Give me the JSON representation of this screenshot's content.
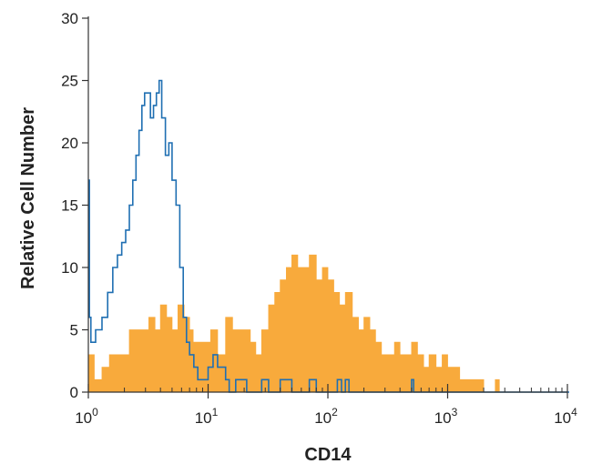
{
  "chart_data": {
    "type": "area",
    "title": "",
    "xlabel": "CD14",
    "ylabel": "Relative Cell Number",
    "x_scale": "log",
    "xlim": [
      1,
      10000
    ],
    "ylim": [
      0,
      30
    ],
    "grid": false,
    "legend": "none",
    "x_tick_labels": [
      {
        "value": 1,
        "base": "10",
        "exp": "0"
      },
      {
        "value": 10,
        "base": "10",
        "exp": "1"
      },
      {
        "value": 100,
        "base": "10",
        "exp": "2"
      },
      {
        "value": 1000,
        "base": "10",
        "exp": "3"
      },
      {
        "value": 10000,
        "base": "10",
        "exp": "4"
      }
    ],
    "y_tick_labels": [
      "0",
      "5",
      "10",
      "15",
      "20",
      "25",
      "30"
    ],
    "series": [
      {
        "kind": "filled",
        "color": "#f8aa3c",
        "x": [
          1,
          1.12,
          1.3,
          1.5,
          1.7,
          2.0,
          2.2,
          2.5,
          2.8,
          3.2,
          3.6,
          4.0,
          4.5,
          5.0,
          5.6,
          6.3,
          7.0,
          7.5,
          8.5,
          9.5,
          10.5,
          12,
          14,
          16,
          18,
          20,
          22.5,
          25,
          28,
          32,
          36,
          40,
          45,
          50,
          56,
          63,
          70,
          80,
          90,
          100,
          112,
          125,
          140,
          160,
          180,
          200,
          224,
          250,
          280,
          320,
          360,
          400,
          450,
          500,
          560,
          630,
          700,
          800,
          900,
          1000,
          1120,
          1260,
          1400,
          1600,
          1800,
          2000,
          2200,
          2500,
          2600,
          2700,
          2800,
          3000
        ],
        "y": [
          3,
          1,
          2,
          3,
          3,
          3,
          5,
          5,
          5,
          6,
          5,
          7,
          6,
          5,
          7,
          6,
          5,
          4,
          4,
          4,
          5,
          3,
          6,
          5,
          5,
          5,
          4,
          3,
          5,
          7,
          8,
          9,
          10,
          11,
          10,
          10,
          11,
          9,
          10,
          9,
          8,
          7,
          8,
          6,
          5,
          6,
          5,
          4,
          3,
          3,
          4,
          3,
          3,
          4,
          3,
          2,
          3,
          2,
          3,
          2,
          2,
          1,
          1,
          1,
          1,
          0,
          0,
          1,
          1,
          0,
          0,
          0
        ]
      },
      {
        "kind": "outline",
        "color": "#1f6fb2",
        "x": [
          1,
          1.02,
          1.05,
          1.08,
          1.15,
          1.3,
          1.45,
          1.6,
          1.75,
          1.9,
          2.05,
          2.2,
          2.35,
          2.5,
          2.65,
          2.8,
          2.95,
          3.1,
          3.3,
          3.5,
          3.7,
          3.9,
          4.1,
          4.4,
          4.7,
          5.0,
          5.4,
          5.8,
          6.2,
          6.6,
          7.0,
          7.6,
          8.2,
          9.0,
          10,
          11,
          12,
          13,
          14,
          15,
          17,
          19,
          21,
          24,
          28,
          32,
          40,
          50,
          60,
          70,
          80,
          90,
          100,
          120,
          130,
          140,
          150,
          170,
          200,
          300,
          400,
          450,
          500,
          520,
          600,
          1000,
          2000,
          5000,
          10000
        ],
        "y": [
          17,
          6,
          4,
          4,
          5,
          6,
          8,
          10,
          11,
          12,
          13,
          15,
          17,
          19,
          21,
          23,
          24,
          24,
          22,
          23,
          24,
          25,
          22,
          19,
          20,
          17,
          15,
          10,
          6,
          4,
          3,
          2,
          1,
          1,
          2,
          3,
          2,
          2,
          1,
          0,
          1,
          1,
          0,
          0,
          1,
          0,
          1,
          0,
          0,
          1,
          0,
          0,
          0,
          1,
          0,
          1,
          0,
          0,
          0,
          0,
          0,
          0,
          1,
          0,
          0,
          0,
          0,
          0,
          0
        ]
      }
    ]
  }
}
